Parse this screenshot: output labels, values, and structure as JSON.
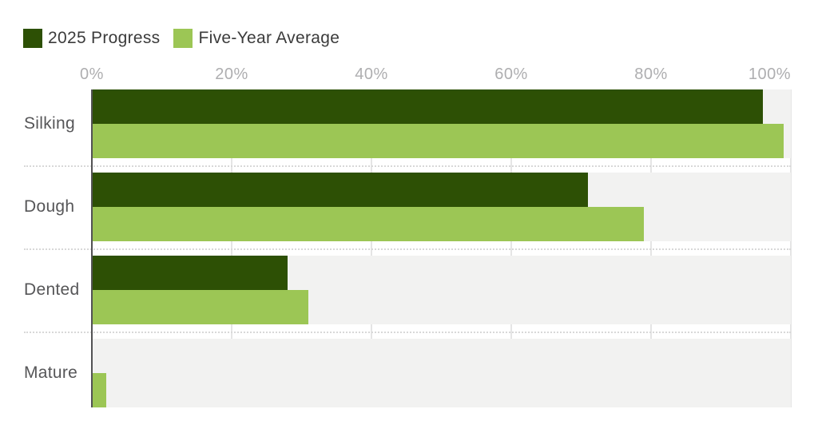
{
  "chart_data": {
    "type": "bar",
    "orientation": "horizontal",
    "categories": [
      "Silking",
      "Dough",
      "Dented",
      "Mature"
    ],
    "series": [
      {
        "name": "2025 Progress",
        "color": "#2d5005",
        "values": [
          96,
          71,
          28,
          0
        ]
      },
      {
        "name": "Five-Year Average",
        "color": "#9cc655",
        "values": [
          99,
          79,
          31,
          2
        ]
      }
    ],
    "value_unit": "%",
    "xlim": [
      0,
      100
    ],
    "x_tick_values": [
      0,
      20,
      40,
      60,
      80,
      100
    ],
    "x_tick_labels": [
      "0%",
      "20%",
      "40%",
      "60%",
      "80%",
      "100%"
    ],
    "grid": "vertical",
    "legend_position": "top-left"
  },
  "legend": {
    "items": [
      {
        "label": "2025 Progress",
        "color": "#2d5005"
      },
      {
        "label": "Five-Year Average",
        "color": "#9cc655"
      }
    ]
  },
  "colors": {
    "background": "#ffffff",
    "bar_dark_green": "#2d5005",
    "bar_light_green": "#9cc655",
    "row_band": "#f2f2f1",
    "gridline": "#e5e5e5",
    "axis_line": "#525254",
    "dotted_line": "#d8d8d8",
    "tick_label": "#aeaeb0",
    "category_label": "#565658",
    "legend_text": "#3b3b3b"
  }
}
